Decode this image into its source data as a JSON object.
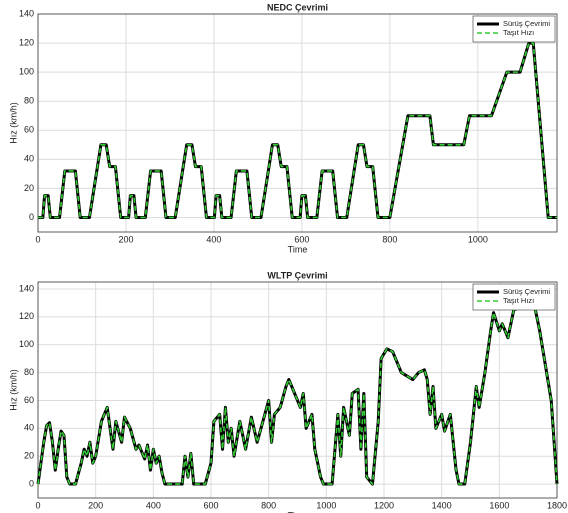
{
  "chart_data": [
    {
      "type": "line",
      "title": "NEDC Çevrimi",
      "x_label": "Time",
      "y_label": "Hız (km/h)",
      "xlim": [
        0,
        1180
      ],
      "ylim": [
        -10,
        140
      ],
      "xticks": [
        0,
        200,
        400,
        600,
        800,
        1000
      ],
      "yticks": [
        0,
        20,
        40,
        60,
        80,
        100,
        120,
        140
      ],
      "grid": true,
      "legend": "upper right",
      "x": [
        0,
        11,
        15,
        23,
        28,
        49,
        61,
        85,
        96,
        117,
        143,
        155,
        163,
        176,
        188,
        206,
        210,
        218,
        223,
        244,
        256,
        280,
        291,
        312,
        338,
        350,
        358,
        371,
        383,
        401,
        405,
        413,
        418,
        439,
        451,
        475,
        486,
        507,
        533,
        545,
        553,
        566,
        578,
        596,
        600,
        608,
        613,
        634,
        646,
        670,
        681,
        702,
        728,
        740,
        748,
        761,
        773,
        800,
        841,
        891,
        899,
        968,
        981,
        1031,
        1066,
        1096,
        1116,
        1126,
        1160,
        1180
      ],
      "series": [
        {
          "name": "Sürüş Çevrimi",
          "color": "#000000",
          "values": [
            0,
            0,
            15,
            15,
            0,
            0,
            32,
            32,
            0,
            0,
            50,
            50,
            35,
            35,
            0,
            0,
            15,
            15,
            0,
            0,
            32,
            32,
            0,
            0,
            50,
            50,
            35,
            35,
            0,
            0,
            15,
            15,
            0,
            0,
            32,
            32,
            0,
            0,
            50,
            50,
            35,
            35,
            0,
            0,
            15,
            15,
            0,
            0,
            32,
            32,
            0,
            0,
            50,
            50,
            35,
            35,
            0,
            0,
            70,
            70,
            50,
            50,
            70,
            70,
            100,
            100,
            120,
            120,
            0,
            0
          ]
        },
        {
          "name": "Taşıt Hızı",
          "color": "#33cc33",
          "values": [
            0,
            0,
            15,
            15,
            0,
            0,
            32,
            32,
            0,
            0,
            50,
            50,
            35,
            35,
            0,
            0,
            15,
            15,
            0,
            0,
            32,
            32,
            0,
            0,
            50,
            50,
            35,
            35,
            0,
            0,
            15,
            15,
            0,
            0,
            32,
            32,
            0,
            0,
            50,
            50,
            35,
            35,
            0,
            0,
            15,
            15,
            0,
            0,
            32,
            32,
            0,
            0,
            50,
            50,
            35,
            35,
            0,
            0,
            70,
            70,
            50,
            50,
            70,
            70,
            100,
            100,
            120,
            120,
            0,
            0
          ]
        }
      ]
    },
    {
      "type": "line",
      "title": "WLTP Çevrimi",
      "x_label": "Time",
      "y_label": "Hız (km/h)",
      "xlim": [
        0,
        1800
      ],
      "ylim": [
        -10,
        145
      ],
      "xticks": [
        0,
        200,
        400,
        600,
        800,
        1000,
        1200,
        1400,
        1600,
        1800
      ],
      "yticks": [
        0,
        20,
        40,
        60,
        80,
        100,
        120,
        140
      ],
      "grid": true,
      "legend": "upper right",
      "x": [
        0,
        10,
        20,
        30,
        40,
        50,
        60,
        70,
        80,
        90,
        100,
        110,
        130,
        150,
        160,
        170,
        180,
        190,
        200,
        220,
        240,
        250,
        260,
        270,
        290,
        300,
        320,
        340,
        350,
        370,
        380,
        390,
        400,
        410,
        420,
        430,
        440,
        470,
        500,
        510,
        520,
        530,
        540,
        580,
        600,
        610,
        630,
        640,
        650,
        660,
        670,
        680,
        700,
        720,
        740,
        760,
        780,
        800,
        810,
        820,
        840,
        860,
        870,
        890,
        910,
        920,
        930,
        950,
        960,
        980,
        990,
        1020,
        1040,
        1050,
        1060,
        1080,
        1090,
        1110,
        1120,
        1130,
        1140,
        1160,
        1180,
        1190,
        1210,
        1230,
        1260,
        1300,
        1320,
        1340,
        1350,
        1360,
        1370,
        1380,
        1400,
        1410,
        1430,
        1450,
        1460,
        1480,
        1500,
        1520,
        1530,
        1550,
        1570,
        1580,
        1600,
        1610,
        1630,
        1650,
        1690,
        1720,
        1740,
        1760,
        1780,
        1800
      ],
      "series": [
        {
          "name": "Sürüş Çevrimi",
          "color": "#000000",
          "values": [
            0,
            15,
            30,
            42,
            44,
            30,
            10,
            25,
            38,
            35,
            5,
            0,
            0,
            15,
            25,
            20,
            30,
            15,
            20,
            45,
            55,
            40,
            25,
            45,
            30,
            48,
            40,
            25,
            28,
            18,
            28,
            10,
            25,
            15,
            20,
            8,
            0,
            0,
            0,
            20,
            5,
            22,
            0,
            0,
            15,
            45,
            50,
            25,
            55,
            30,
            40,
            20,
            45,
            25,
            48,
            30,
            45,
            60,
            30,
            50,
            55,
            70,
            75,
            65,
            55,
            65,
            40,
            50,
            25,
            5,
            0,
            0,
            50,
            20,
            55,
            35,
            65,
            68,
            25,
            65,
            5,
            0,
            45,
            90,
            97,
            95,
            80,
            75,
            80,
            82,
            75,
            50,
            70,
            40,
            50,
            38,
            50,
            10,
            0,
            0,
            30,
            70,
            55,
            80,
            110,
            123,
            110,
            115,
            105,
            125,
            128,
            130,
            110,
            85,
            60,
            0
          ]
        },
        {
          "name": "Taşıt Hızı",
          "color": "#33cc33",
          "values": [
            0,
            15,
            30,
            42,
            44,
            30,
            10,
            25,
            38,
            35,
            5,
            0,
            0,
            15,
            25,
            20,
            30,
            15,
            20,
            45,
            55,
            40,
            25,
            45,
            30,
            48,
            40,
            25,
            28,
            18,
            28,
            10,
            25,
            15,
            20,
            8,
            0,
            0,
            0,
            20,
            5,
            22,
            0,
            0,
            15,
            45,
            50,
            25,
            55,
            30,
            40,
            20,
            45,
            25,
            48,
            30,
            45,
            60,
            30,
            50,
            55,
            70,
            75,
            65,
            55,
            65,
            40,
            50,
            25,
            5,
            0,
            0,
            50,
            20,
            55,
            35,
            65,
            68,
            25,
            65,
            5,
            0,
            45,
            90,
            97,
            95,
            80,
            75,
            80,
            82,
            75,
            50,
            70,
            40,
            50,
            38,
            50,
            10,
            0,
            0,
            30,
            70,
            55,
            80,
            110,
            123,
            110,
            115,
            105,
            125,
            128,
            130,
            110,
            85,
            60,
            0
          ]
        }
      ]
    }
  ]
}
